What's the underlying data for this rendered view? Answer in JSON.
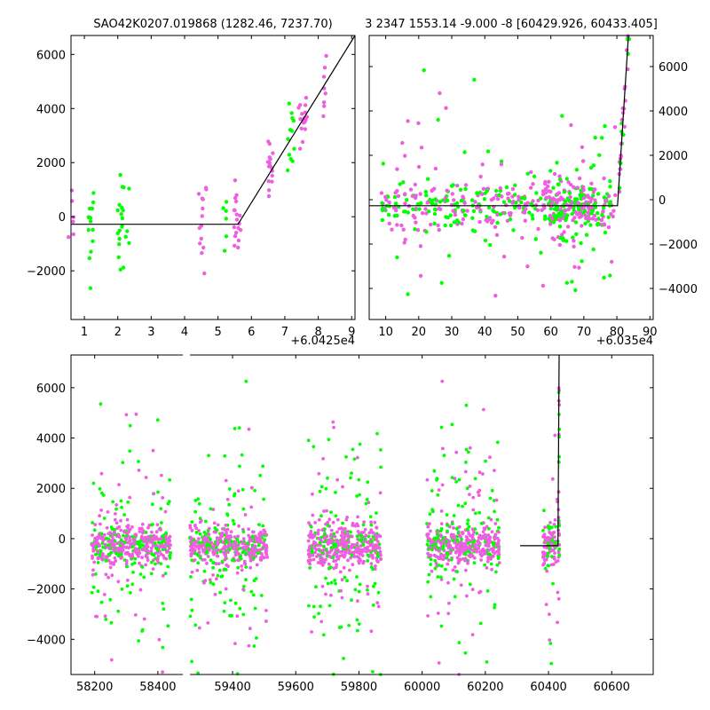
{
  "colors": {
    "green": "#00ff00",
    "magenta": "#ee5fe0",
    "model_line": "#000000"
  },
  "chart_data": [
    {
      "type": "scatter",
      "title": "SAO42K0207.019868 (1282.46, 7237.70)",
      "xlabel": "",
      "ylabel": "",
      "x_offset_label": "+6.0425e4",
      "xlim": [
        0.6,
        9.1
      ],
      "ylim": [
        -3800,
        6700
      ],
      "xticks": [
        "1",
        "2",
        "3",
        "4",
        "5",
        "6",
        "7",
        "8",
        "9"
      ],
      "yticks": [
        "6000",
        "4000",
        "2000",
        "0",
        "−2000"
      ],
      "grid": false,
      "legend": "none",
      "model_line": [
        [
          0.6,
          -280
        ],
        [
          5.6,
          -280
        ],
        [
          9.1,
          6700
        ]
      ]
    },
    {
      "type": "scatter",
      "title": "3 2347 1553.14 -9.000 -8 [60429.926, 60433.405]",
      "xlabel": "",
      "ylabel": "",
      "x_offset_label": "+6.035e4",
      "xlim": [
        5,
        91
      ],
      "ylim": [
        -5400,
        7400
      ],
      "xticks": [
        "10",
        "20",
        "30",
        "40",
        "50",
        "60",
        "70",
        "80",
        "90"
      ],
      "yticks": [
        "6000",
        "4000",
        "2000",
        "0",
        "−2000",
        "−4000"
      ],
      "grid": false,
      "legend": "none",
      "model_line": [
        [
          5,
          -270
        ],
        [
          80.2,
          -270
        ],
        [
          83.5,
          7400
        ]
      ]
    },
    {
      "type": "scatter",
      "title": "",
      "xlabel": "",
      "ylabel": "",
      "xlim": [
        58125,
        60680
      ],
      "ylim": [
        -5400,
        7300
      ],
      "xticks": [
        "58200",
        "58400",
        "59400",
        "59600",
        "59800",
        "60000",
        "60200",
        "60400",
        "60600"
      ],
      "yticks": [
        "6000",
        "4000",
        "2000",
        "0",
        "−2000",
        "−4000"
      ],
      "grid": false,
      "legend": "none",
      "axis_break": "between 58400 and 59400",
      "model_line": [
        [
          60310,
          -280
        ],
        [
          60430,
          -280
        ],
        [
          60433.4,
          7300
        ]
      ]
    }
  ]
}
